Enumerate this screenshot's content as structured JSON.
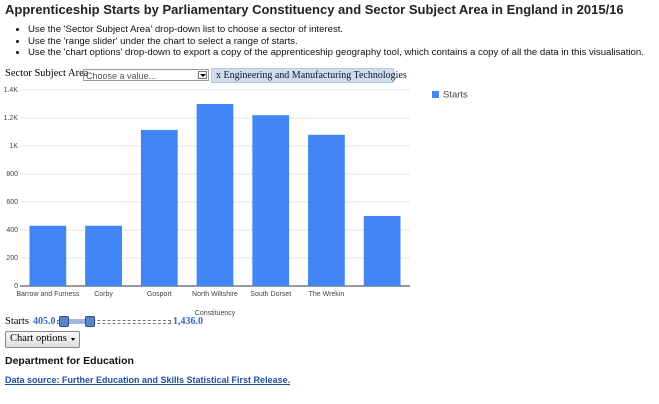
{
  "header": {
    "title": "Apprenticeship Starts by Parliamentary Constituency and Sector Subject Area in England in 2015/16"
  },
  "instructions": [
    "Use the 'Sector Subject Area' drop-down list to choose a sector of interest.",
    "Use the 'range slider' under the chart to select a range of starts.",
    "Use the 'chart options' drop-down to export a copy of the apprenticeship geography tool, which contains a copy of all the data in this visualisation."
  ],
  "filter": {
    "label": "Sector Subject Area",
    "placeholder": "Choose a value...",
    "remove": "x",
    "selected": "Engineering and Manufacturing Technologies"
  },
  "chart_data": {
    "type": "bar",
    "x_label": "Constituency",
    "categories": [
      "Barrow and Furness",
      "Corby",
      "Gosport",
      "North Wiltshire",
      "South Dorset",
      "The Wrekin",
      null
    ],
    "series": [
      {
        "name": "Starts",
        "color": "#4285f4",
        "values": [
          430,
          430,
          1115,
          1300,
          1220,
          1080,
          500
        ]
      }
    ],
    "ylim": [
      0,
      1400
    ],
    "yticks": [
      0,
      200,
      400,
      600,
      800,
      {
        "value": 1000,
        "label": "1K"
      },
      {
        "value": 1200,
        "label": "1.2K"
      },
      {
        "value": 1400,
        "label": "1.4K"
      }
    ],
    "grid": true,
    "legend": "right"
  },
  "slider": {
    "label": "Starts",
    "low": "405.0",
    "high": "1,436.0"
  },
  "button": {
    "label": "Chart options"
  },
  "footer": {
    "org": "Department for Education",
    "link": "Data source: Further Education and Skills Statistical First Release."
  }
}
